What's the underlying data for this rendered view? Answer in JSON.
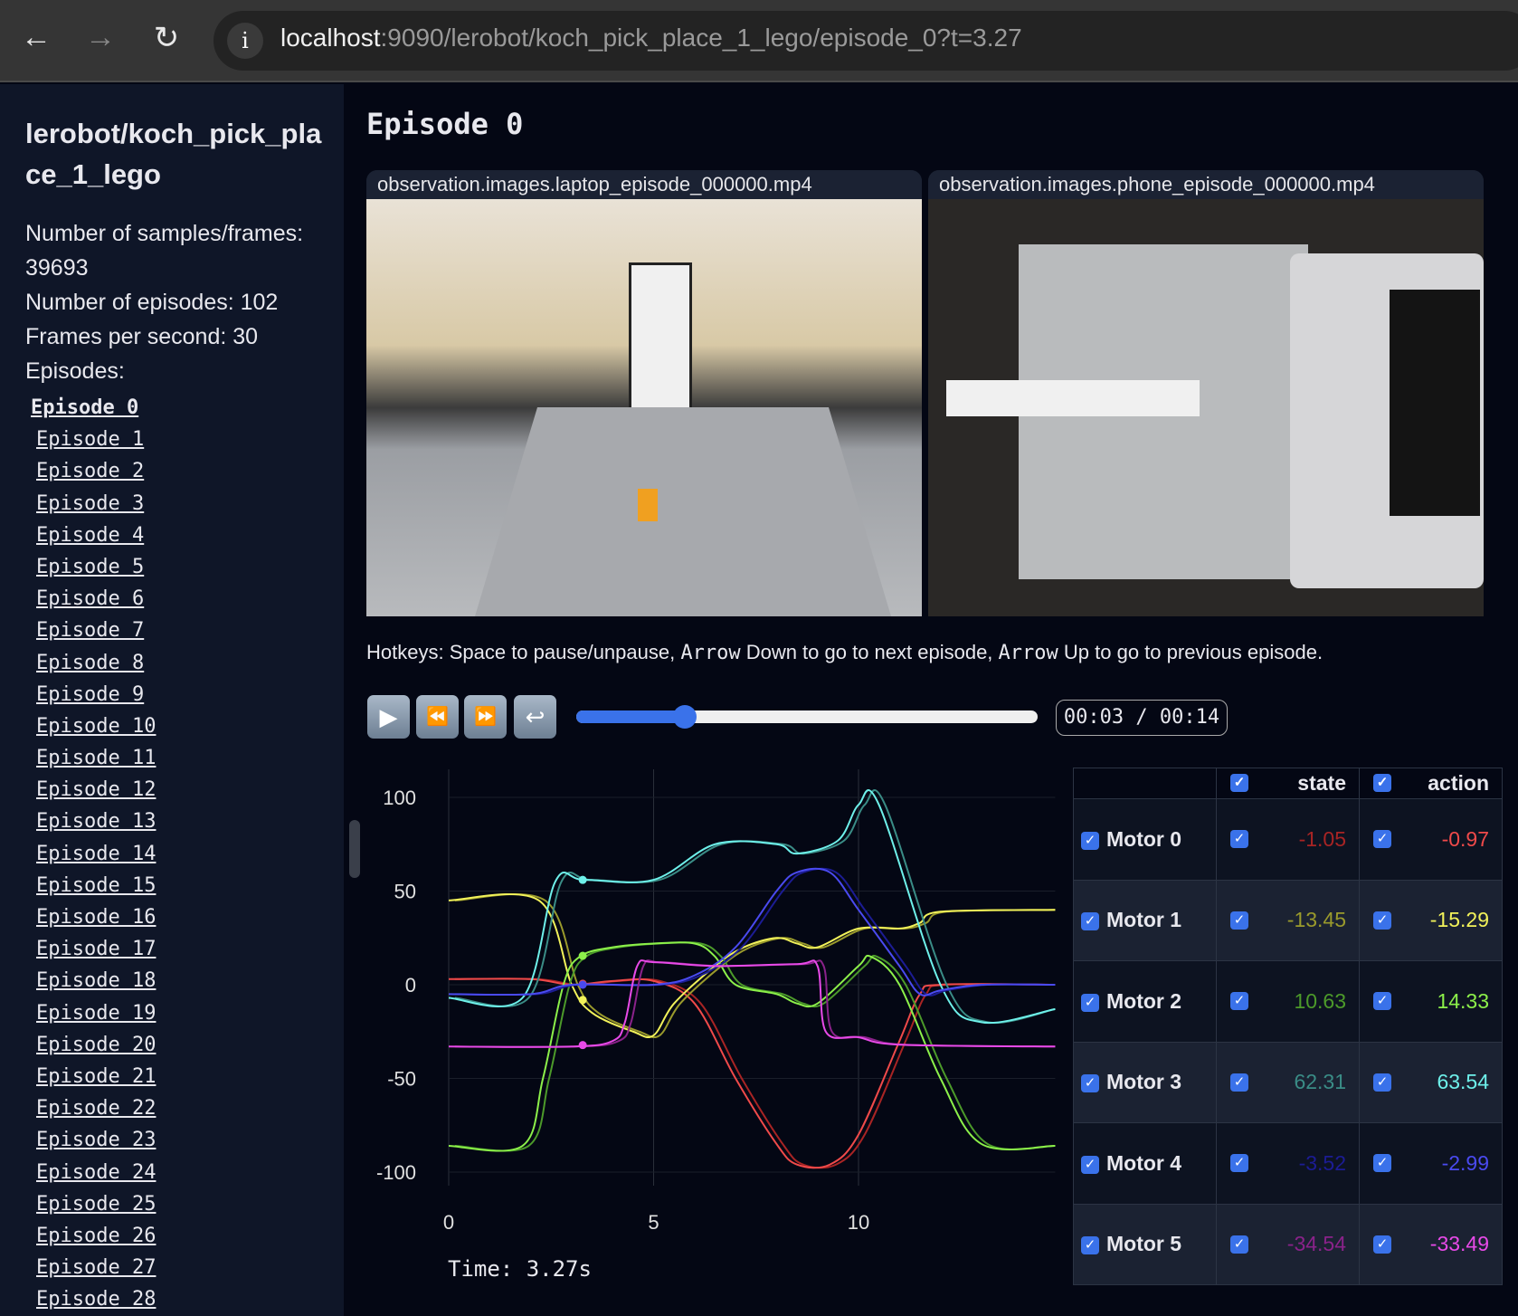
{
  "browser": {
    "url_host": "localhost",
    "url_rest": ":9090/lerobot/koch_pick_place_1_lego/episode_0?t=3.27",
    "back_icon": "←",
    "forward_icon": "→",
    "reload_icon": "↻",
    "info_icon": "i"
  },
  "sidebar": {
    "dataset_title": "lerobot/koch_pick_place_1_lego",
    "samples_label": "Number of samples/frames: 39693",
    "episodes_count_label": "Number of episodes: 102",
    "fps_label": "Frames per second: 30",
    "episodes_heading": "Episodes:",
    "episodes": [
      "Episode 0",
      "Episode 1",
      "Episode 2",
      "Episode 3",
      "Episode 4",
      "Episode 5",
      "Episode 6",
      "Episode 7",
      "Episode 8",
      "Episode 9",
      "Episode 10",
      "Episode 11",
      "Episode 12",
      "Episode 13",
      "Episode 14",
      "Episode 15",
      "Episode 16",
      "Episode 17",
      "Episode 18",
      "Episode 19",
      "Episode 20",
      "Episode 21",
      "Episode 22",
      "Episode 23",
      "Episode 24",
      "Episode 25",
      "Episode 26",
      "Episode 27",
      "Episode 28"
    ],
    "active_episode": 0
  },
  "main": {
    "title": "Episode 0",
    "videos": [
      {
        "label": "observation.images.laptop_episode_000000.mp4"
      },
      {
        "label": "observation.images.phone_episode_000000.mp4"
      }
    ],
    "hotkeys": {
      "p1": "Hotkeys: Space to pause/unpause, ",
      "k1": "Arrow",
      "p2": " Down to go to next episode, ",
      "k2": "Arrow",
      "p3": " Up to go to previous episode."
    },
    "controls": {
      "play_icon": "▶",
      "rewind_icon": "⏪",
      "forward_icon": "⏩",
      "loop_icon": "↩",
      "progress": 0.235,
      "time": "00:03 / 00:14"
    },
    "time_label": "Time: 3.27s"
  },
  "table": {
    "headers": [
      "state",
      "action"
    ],
    "rows": [
      {
        "name": "Motor 0",
        "state": "-1.05",
        "action": "-0.97",
        "state_color": "#a82424",
        "action_color": "#f04a4a"
      },
      {
        "name": "Motor 1",
        "state": "-13.45",
        "action": "-15.29",
        "state_color": "#9a9a2c",
        "action_color": "#f2f25a"
      },
      {
        "name": "Motor 2",
        "state": "10.63",
        "action": "14.33",
        "state_color": "#4c9a2a",
        "action_color": "#8cf04a"
      },
      {
        "name": "Motor 3",
        "state": "62.31",
        "action": "63.54",
        "state_color": "#3a8c86",
        "action_color": "#6ef0ea"
      },
      {
        "name": "Motor 4",
        "state": "-3.52",
        "action": "-2.99",
        "state_color": "#1c1c94",
        "action_color": "#4a4af0"
      },
      {
        "name": "Motor 5",
        "state": "-34.54",
        "action": "-33.49",
        "state_color": "#8a228a",
        "action_color": "#e84ae8"
      }
    ]
  },
  "chart_data": {
    "type": "line",
    "xlim": [
      0,
      14.8
    ],
    "ylim": [
      -100,
      100
    ],
    "xticks": [
      "0",
      "5",
      "10"
    ],
    "yticks": [
      "100",
      "50",
      "0",
      "-50",
      "-100"
    ],
    "grid": true,
    "cursor_x": 3.27,
    "series": [
      {
        "name": "Motor 0",
        "color": "#f04a4a",
        "x": [
          0,
          2,
          3,
          4,
          5,
          6,
          7,
          8,
          8.5,
          9.3,
          10,
          11,
          11.5,
          12,
          14.8
        ],
        "y": [
          3,
          3,
          0,
          2,
          2,
          -10,
          -50,
          -85,
          -96,
          -96,
          -80,
          -30,
          -5,
          0,
          0
        ]
      },
      {
        "name": "Motor 1",
        "color": "#f2f25a",
        "x": [
          0,
          2.2,
          3,
          3.5,
          4.5,
          5,
          5.5,
          6.5,
          7.2,
          8,
          8.5,
          9,
          10,
          11,
          11.5,
          12,
          14.8
        ],
        "y": [
          45,
          45,
          0,
          -15,
          -25,
          -27,
          -10,
          10,
          20,
          25,
          22,
          20,
          30,
          30,
          33,
          39,
          40
        ]
      },
      {
        "name": "Motor 2",
        "color": "#8cf04a",
        "x": [
          0,
          1.8,
          2.3,
          2.8,
          3.2,
          4,
          5,
          6,
          6.5,
          7,
          8,
          8.5,
          9,
          10,
          10.3,
          11,
          12,
          13,
          14.8
        ],
        "y": [
          -86,
          -86,
          -50,
          0,
          15,
          20,
          22,
          22,
          15,
          0,
          -5,
          -10,
          -10,
          10,
          15,
          0,
          -50,
          -85,
          -86
        ]
      },
      {
        "name": "Motor 3",
        "color": "#6ef0ea",
        "x": [
          0,
          1.8,
          2.6,
          3.3,
          5,
          6.5,
          8,
          8.5,
          9.5,
          10,
          10.5,
          12,
          13,
          14.8
        ],
        "y": [
          -7,
          -7,
          55,
          56,
          56,
          75,
          75,
          70,
          77,
          96,
          96,
          0,
          -20,
          -13
        ]
      },
      {
        "name": "Motor 4",
        "color": "#4a4af0",
        "x": [
          0,
          2,
          3,
          5,
          6,
          7,
          8,
          8.5,
          9.3,
          10,
          11,
          11.5,
          12,
          13,
          14.8
        ],
        "y": [
          -5,
          -5,
          0,
          0,
          5,
          20,
          50,
          60,
          60,
          40,
          10,
          -5,
          -3,
          0,
          0
        ]
      },
      {
        "name": "Motor 5",
        "color": "#e84ae8",
        "x": [
          0,
          3,
          4,
          4.3,
          4.6,
          5,
          6.5,
          8.5,
          9,
          9.2,
          10,
          11,
          14.8
        ],
        "y": [
          -33,
          -33,
          -30,
          -20,
          10,
          12,
          10,
          11,
          10,
          -25,
          -28,
          -32,
          -33
        ]
      }
    ]
  }
}
